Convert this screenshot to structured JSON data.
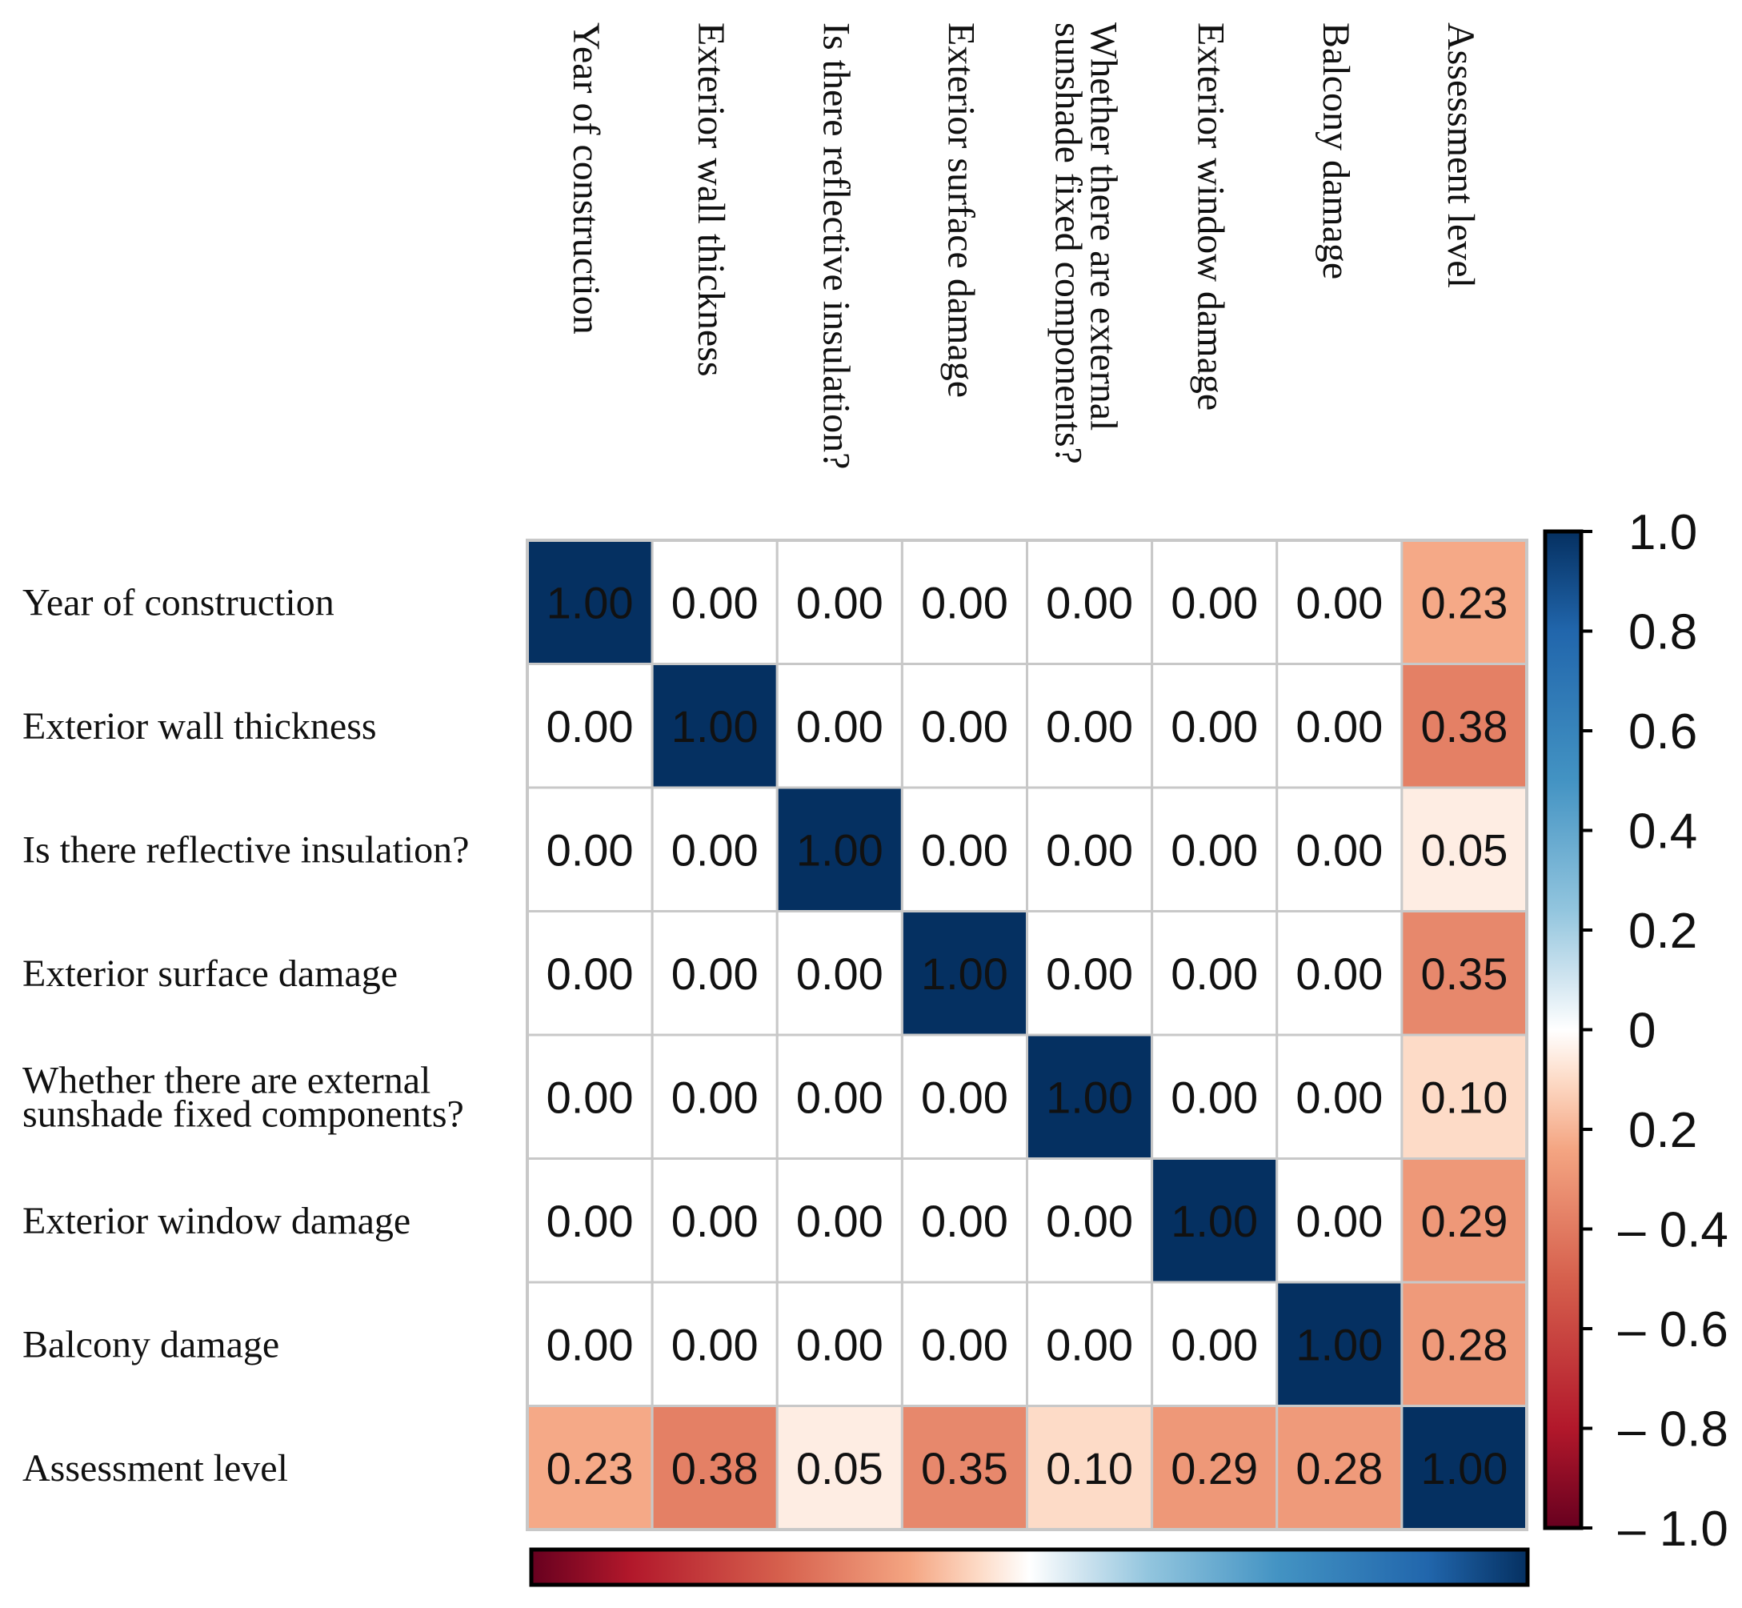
{
  "chart_data": {
    "type": "heatmap",
    "title": "",
    "variables": [
      "Year of construction",
      "Exterior wall thickness",
      "Is there reflective insulation?",
      "Exterior surface damage",
      "Whether there are external sunshade fixed components?",
      "Exterior window damage",
      "Balcony damage",
      "Assessment level"
    ],
    "row_labels": [
      [
        "Year of construction"
      ],
      [
        "Exterior wall thickness"
      ],
      [
        "Is there reflective insulation?"
      ],
      [
        "Exterior surface damage"
      ],
      [
        "Whether there are external",
        "sunshade fixed components?"
      ],
      [
        "Exterior window damage"
      ],
      [
        "Balcony damage"
      ],
      [
        "Assessment level"
      ]
    ],
    "col_labels": [
      [
        "Year of construction"
      ],
      [
        "Exterior wall thickness"
      ],
      [
        "Is there reflective insulation?"
      ],
      [
        "Exterior surface damage"
      ],
      [
        "Whether there are external",
        "sunshade fixed components?"
      ],
      [
        "Exterior window damage"
      ],
      [
        "Balcony damage"
      ],
      [
        "Assessment level"
      ]
    ],
    "matrix": [
      [
        1.0,
        0.0,
        0.0,
        0.0,
        0.0,
        0.0,
        0.0,
        0.23
      ],
      [
        0.0,
        1.0,
        0.0,
        0.0,
        0.0,
        0.0,
        0.0,
        0.38
      ],
      [
        0.0,
        0.0,
        1.0,
        0.0,
        0.0,
        0.0,
        0.0,
        0.05
      ],
      [
        0.0,
        0.0,
        0.0,
        1.0,
        0.0,
        0.0,
        0.0,
        0.35
      ],
      [
        0.0,
        0.0,
        0.0,
        0.0,
        1.0,
        0.0,
        0.0,
        0.1
      ],
      [
        0.0,
        0.0,
        0.0,
        0.0,
        0.0,
        1.0,
        0.0,
        0.29
      ],
      [
        0.0,
        0.0,
        0.0,
        0.0,
        0.0,
        0.0,
        1.0,
        0.28
      ],
      [
        0.23,
        0.38,
        0.05,
        0.35,
        0.1,
        0.29,
        0.28,
        1.0
      ]
    ],
    "value_format": "0.00",
    "colorbar": {
      "range": [
        -1.0,
        1.0
      ],
      "tick_labels": [
        "1.0",
        "0.8",
        "0.6",
        "0.4",
        "0.2",
        "0",
        "0.2",
        "– 0.4",
        "– 0.6",
        "– 0.8",
        "– 1.0"
      ],
      "colors": {
        "neg_extreme": "#67001f",
        "neg_mid": "#d6604d",
        "neg_light": "#fddbc7",
        "zero": "#ffffff",
        "pos_light": "#d1e5f0",
        "pos_mid": "#4393c3",
        "pos_extreme": "#053061"
      },
      "orientation": "vertical-right"
    },
    "grid_color": "#c8c8c8"
  }
}
